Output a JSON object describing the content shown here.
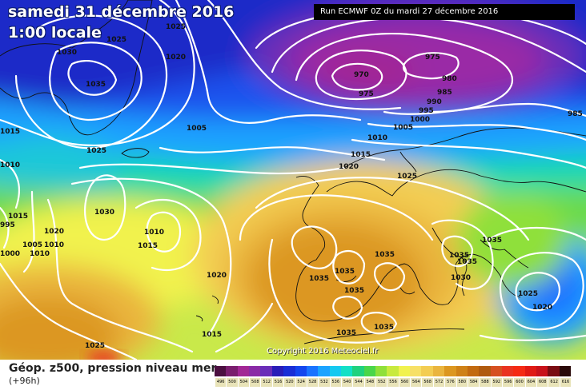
{
  "header": {
    "title_line1": "samedi 31 décembre 2016",
    "title_line2": "1:00 locale",
    "run_info": "Run ECMWF 0Z du mardi 27 décembre 2016"
  },
  "footer": {
    "product": "Géop. z500, pression niveau mer",
    "lead": "(+96h)",
    "copyright": "Copyright 2016 Meteociel.fr"
  },
  "legend": {
    "values": [
      "496",
      "500",
      "504",
      "508",
      "512",
      "516",
      "520",
      "524",
      "528",
      "532",
      "536",
      "540",
      "544",
      "548",
      "552",
      "556",
      "560",
      "564",
      "568",
      "572",
      "576",
      "580",
      "584",
      "588",
      "592",
      "596",
      "600",
      "604",
      "608",
      "612",
      "616"
    ],
    "colors": [
      "#4b0f40",
      "#7a1e6e",
      "#a22795",
      "#8a2aa6",
      "#6a2db8",
      "#2a1db8",
      "#1a2ed6",
      "#1446ee",
      "#1a73ff",
      "#1ba3ff",
      "#15c9f0",
      "#13e0c6",
      "#20d27e",
      "#4ad64a",
      "#8fe03a",
      "#c8ea3e",
      "#f1f24e",
      "#f7e066",
      "#f3cd52",
      "#eab53e",
      "#dc9720",
      "#cf8117",
      "#c26a10",
      "#b05a0e",
      "#d65020",
      "#ea3320",
      "#f52a14",
      "#e01a14",
      "#c8121a",
      "#7a0c12",
      "#2a0a0a"
    ]
  },
  "map": {
    "pressure_labels": [
      {
        "text": "1025"
      },
      {
        "text": "1025"
      },
      {
        "text": "1030"
      },
      {
        "text": "1035"
      },
      {
        "text": "1020"
      },
      {
        "text": "1015"
      },
      {
        "text": "1005"
      },
      {
        "text": "1010"
      },
      {
        "text": "1025"
      },
      {
        "text": "1030"
      },
      {
        "text": "1010"
      },
      {
        "text": "1015"
      },
      {
        "text": "1020"
      },
      {
        "text": "1015"
      },
      {
        "text": "1025"
      },
      {
        "text": "970"
      },
      {
        "text": "975"
      },
      {
        "text": "975"
      },
      {
        "text": "980"
      },
      {
        "text": "985"
      },
      {
        "text": "990"
      },
      {
        "text": "995"
      },
      {
        "text": "1000"
      },
      {
        "text": "1005"
      },
      {
        "text": "1010"
      },
      {
        "text": "985"
      },
      {
        "text": "1015"
      },
      {
        "text": "1020"
      },
      {
        "text": "1025"
      },
      {
        "text": "1035"
      },
      {
        "text": "1035"
      },
      {
        "text": "1035"
      },
      {
        "text": "1035"
      },
      {
        "text": "1035"
      },
      {
        "text": "1035"
      },
      {
        "text": "1035"
      },
      {
        "text": "1030"
      },
      {
        "text": "1025"
      },
      {
        "text": "1020"
      },
      {
        "text": "1010"
      },
      {
        "text": "1000"
      },
      {
        "text": "1005"
      },
      {
        "text": "1015"
      },
      {
        "text": "1020"
      },
      {
        "text": "995"
      },
      {
        "text": "1010"
      },
      {
        "text": "1035"
      },
      {
        "text": "1035"
      }
    ]
  }
}
